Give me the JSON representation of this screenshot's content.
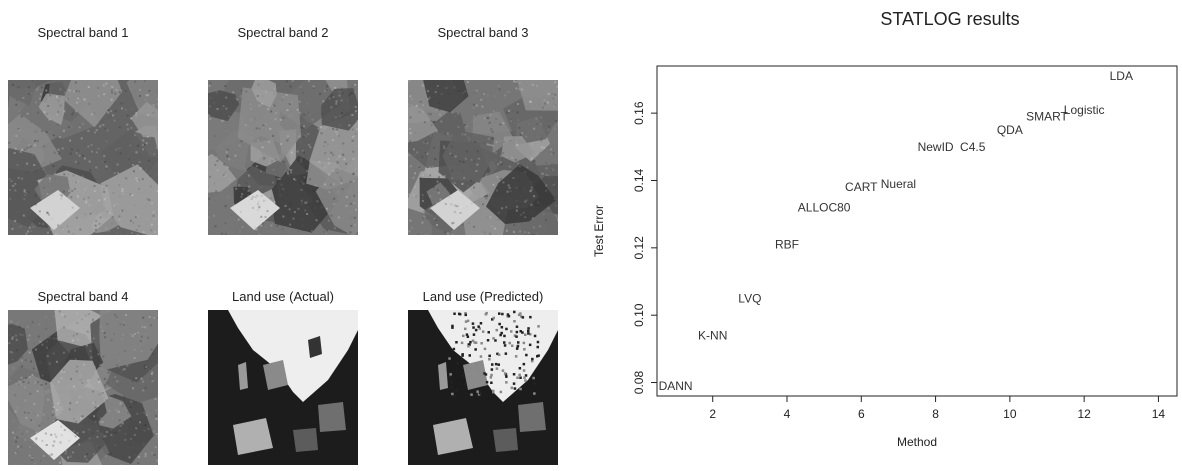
{
  "panels": [
    {
      "title": "Spectral band  1",
      "kind": "band",
      "seed": 3
    },
    {
      "title": "Spectral band  2",
      "kind": "band",
      "seed": 11
    },
    {
      "title": "Spectral band  3",
      "kind": "band",
      "seed": 23
    },
    {
      "title": "Spectral band  4",
      "kind": "band",
      "seed": 41
    },
    {
      "title": "Land use (Actual)",
      "kind": "landuse",
      "seed": 57
    },
    {
      "title": "Land use (Predicted)",
      "kind": "landuse-predicted",
      "seed": 71
    }
  ],
  "chart_data": {
    "type": "scatter",
    "title": "STATLOG results",
    "xlabel": "Method",
    "ylabel": "Test Error",
    "xlim": [
      0.5,
      14.5
    ],
    "ylim": [
      0.076,
      0.174
    ],
    "xticks": [
      2,
      4,
      6,
      8,
      10,
      12,
      14
    ],
    "yticks": [
      0.08,
      0.1,
      0.12,
      0.14,
      0.16
    ],
    "ytick_labels": [
      "0.08",
      "0.10",
      "0.12",
      "0.14",
      "0.16"
    ],
    "grid": false,
    "points": [
      {
        "x": 1,
        "y": 0.079,
        "label": "DANN"
      },
      {
        "x": 2,
        "y": 0.094,
        "label": "K-NN"
      },
      {
        "x": 3,
        "y": 0.105,
        "label": "LVQ"
      },
      {
        "x": 4,
        "y": 0.121,
        "label": "RBF"
      },
      {
        "x": 5,
        "y": 0.132,
        "label": "ALLOC80"
      },
      {
        "x": 6,
        "y": 0.138,
        "label": "CART"
      },
      {
        "x": 7,
        "y": 0.139,
        "label": "Nueral"
      },
      {
        "x": 8,
        "y": 0.15,
        "label": "NewID"
      },
      {
        "x": 9,
        "y": 0.15,
        "label": "C4.5"
      },
      {
        "x": 10,
        "y": 0.155,
        "label": "QDA"
      },
      {
        "x": 11,
        "y": 0.159,
        "label": "SMART"
      },
      {
        "x": 12,
        "y": 0.161,
        "label": "Logistic"
      },
      {
        "x": 13,
        "y": 0.171,
        "label": "LDA"
      }
    ]
  }
}
